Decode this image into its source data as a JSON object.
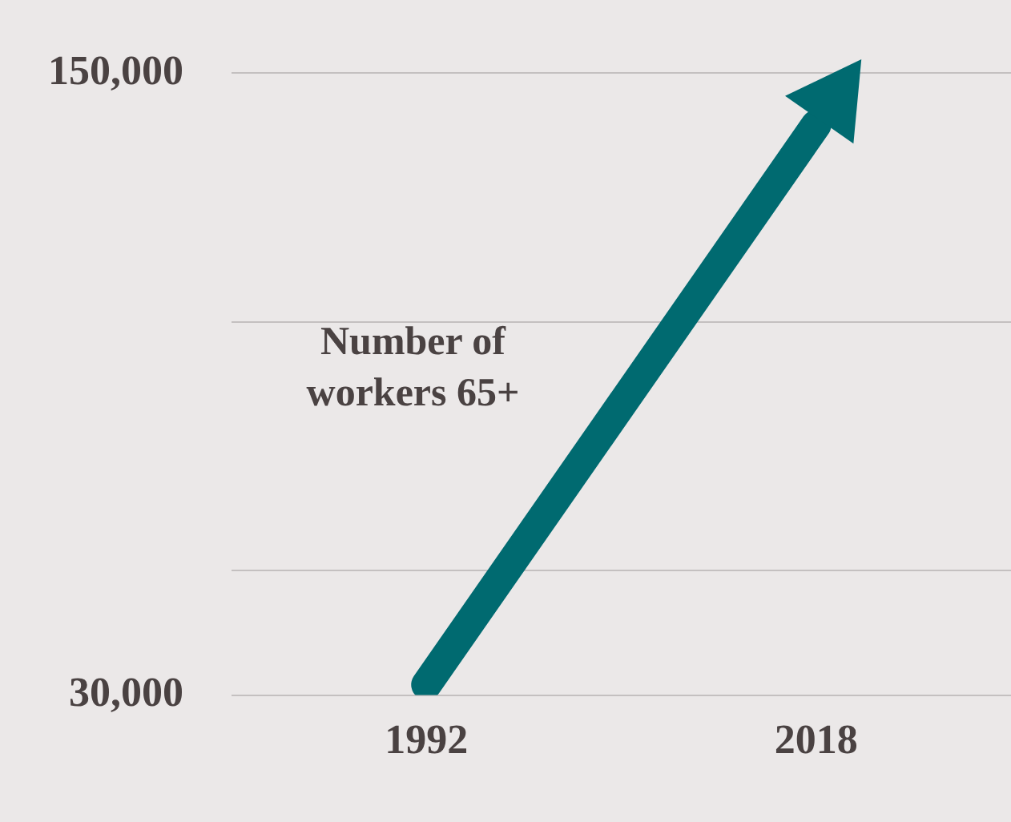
{
  "chart_data": {
    "type": "line",
    "x": [
      1992,
      2018
    ],
    "series": [
      {
        "name": "Number of workers 65+",
        "color": "#006a70",
        "values": [
          32000,
          140000
        ]
      }
    ],
    "xlim": [
      1979,
      2031
    ],
    "xticks": [
      1992,
      2018
    ],
    "ylim": [
      30000,
      150000
    ],
    "yticks": [
      {
        "value": 30000,
        "label": "30,000"
      },
      {
        "value": 54000,
        "label": null
      },
      {
        "value": 102000,
        "label": null
      },
      {
        "value": 150000,
        "label": "150,000"
      }
    ],
    "grid": "y",
    "legend": false,
    "marker": "none",
    "line_style": "solid"
  }
}
